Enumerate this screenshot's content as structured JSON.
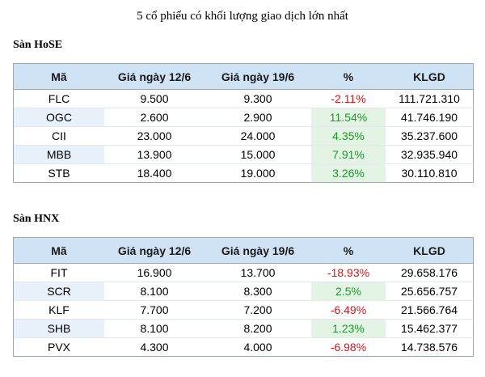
{
  "title": "5 cổ phiếu có khối lượng giao dịch lớn nhất",
  "headers": {
    "ma": "Mã",
    "gia1": "Giá ngày 12/6",
    "gia2": "Giá ngày 19/6",
    "pct": "%",
    "klgd": "KLGD"
  },
  "hose": {
    "label": "Sàn HoSE",
    "rows": [
      {
        "ma": "FLC",
        "gia1": "9.500",
        "gia2": "9.300",
        "pct": "-2.11%",
        "klgd": "111.721.310"
      },
      {
        "ma": "OGC",
        "gia1": "2.600",
        "gia2": "2.900",
        "pct": "11.54%",
        "klgd": "41.746.190"
      },
      {
        "ma": "CII",
        "gia1": "23.000",
        "gia2": "24.000",
        "pct": "4.35%",
        "klgd": "35.237.600"
      },
      {
        "ma": "MBB",
        "gia1": "13.900",
        "gia2": "15.000",
        "pct": "7.91%",
        "klgd": "32.935.940"
      },
      {
        "ma": "STB",
        "gia1": "18.400",
        "gia2": "19.000",
        "pct": "3.26%",
        "klgd": "30.110.810"
      }
    ]
  },
  "hnx": {
    "label": "Sàn HNX",
    "rows": [
      {
        "ma": "FIT",
        "gia1": "16.900",
        "gia2": "13.700",
        "pct": "-18.93%",
        "klgd": "29.658.176"
      },
      {
        "ma": "SCR",
        "gia1": "8.100",
        "gia2": "8.300",
        "pct": "2.5%",
        "klgd": "25.656.757"
      },
      {
        "ma": "KLF",
        "gia1": "7.700",
        "gia2": "7.200",
        "pct": "-6.49%",
        "klgd": "21.566.764"
      },
      {
        "ma": "SHB",
        "gia1": "8.100",
        "gia2": "8.200",
        "pct": "1.23%",
        "klgd": "15.462.377"
      },
      {
        "ma": "PVX",
        "gia1": "4.300",
        "gia2": "4.000",
        "pct": "-6.98%",
        "klgd": "14.738.576"
      }
    ]
  },
  "colors": {
    "header_bg": "#cfe3f5",
    "negative": "#d0141c",
    "positive": "#1a9a2a",
    "positive_bg": "#e4f4e4"
  }
}
